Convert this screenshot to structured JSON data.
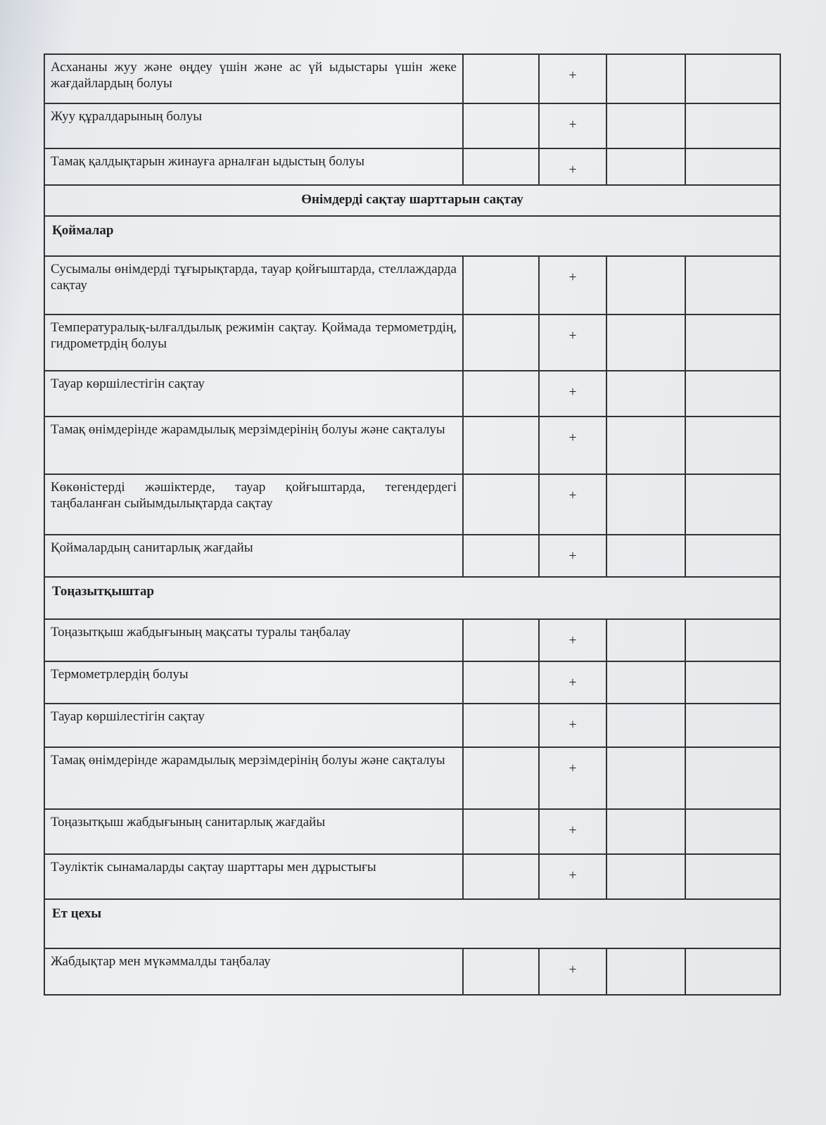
{
  "table": {
    "rows": [
      {
        "label": "Асхананы жуу және өңдеу үшін және ас үй ыдыстары үшін жеке жағдайлардың болуы",
        "mark": "+"
      },
      {
        "label": "Жуу құралдарының болуы",
        "mark": "+"
      },
      {
        "label": "Тамақ қалдықтарын жинауға арналған ыдыстың болуы",
        "mark": "+"
      },
      {
        "title": "Өнімдерді сақтау шарттарын сақтау"
      },
      {
        "heading": "Қоймалар"
      },
      {
        "label": "Сусымалы өнімдерді тұғырықтарда, тауар қойғыштарда, стеллаждарда сақтау",
        "mark": "+"
      },
      {
        "label": "Температуралық-ылғалдылық режимін сақтау. Қоймада термометрдің, гидрометрдің болуы",
        "mark": "+"
      },
      {
        "label": "Тауар көршілестігін сақтау",
        "mark": "+"
      },
      {
        "label": "Тамақ өнімдерінде жарамдылық мерзімдерінің болуы және сақталуы",
        "mark": "+"
      },
      {
        "label": "Көкөністерді жәшіктерде, тауар қойғыштарда, тегендердегі таңбаланған сыйымдылықтарда сақтау",
        "mark": "+"
      },
      {
        "label": "Қоймалардың санитарлық жағдайы",
        "mark": "+"
      },
      {
        "heading": "Тоңазытқыштар"
      },
      {
        "label": "Тоңазытқыш жабдығының мақсаты туралы таңбалау",
        "mark": "+"
      },
      {
        "label": "Термометрлердің болуы",
        "mark": "+"
      },
      {
        "label": "Тауар көршілестігін сақтау",
        "mark": "+"
      },
      {
        "label": "Тамақ өнімдерінде жарамдылық мерзімдерінің болуы және сақталуы",
        "mark": "+"
      },
      {
        "label": "Тоңазытқыш жабдығының санитарлық жағдайы",
        "mark": "+"
      },
      {
        "label": "Тәуліктік сынамаларды сақтау шарттары мен дұрыстығы",
        "mark": "+"
      },
      {
        "heading": "Ет цехы"
      },
      {
        "label": "Жабдықтар мен мүкәммалды таңбалау",
        "mark": "+"
      }
    ]
  }
}
